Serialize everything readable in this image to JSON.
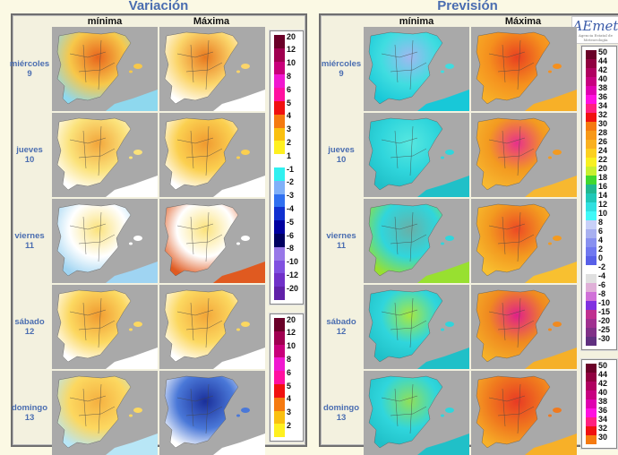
{
  "variacion": {
    "title": "Variación",
    "col_min": "mínima",
    "col_max": "Máxima"
  },
  "prevision": {
    "title": "Previsión",
    "col_min": "mínima",
    "col_max": "Máxima"
  },
  "logo": {
    "text": "AEmet",
    "subtitle": "Agencia Estatal de Meteorología"
  },
  "days": [
    {
      "name": "miércoles",
      "num": "9"
    },
    {
      "name": "jueves",
      "num": "10"
    },
    {
      "name": "viernes",
      "num": "11"
    },
    {
      "name": "sábado",
      "num": "12"
    },
    {
      "name": "domingo",
      "num": "13"
    }
  ],
  "map_colors": {
    "variacion_min": [
      [
        "#f7c84a",
        "#e8641c",
        "#8ed8ee"
      ],
      [
        "#fbe27a",
        "#f2a53a",
        "#ffffff"
      ],
      [
        "#ffffff",
        "#fbe27a",
        "#9fd4f2"
      ],
      [
        "#fcd860",
        "#f09a30",
        "#ffffff"
      ],
      [
        "#fcd860",
        "#f5b040",
        "#b8e6f6"
      ]
    ],
    "variacion_max": [
      [
        "#fbd56a",
        "#e8781e",
        "#ffffff"
      ],
      [
        "#fbd050",
        "#f09a30",
        "#ffffff"
      ],
      [
        "#ffffff",
        "#fbe27a",
        "#e05a20"
      ],
      [
        "#fcd860",
        "#f3a638",
        "#ffffff"
      ],
      [
        "#4a78d8",
        "#1a2f9a",
        "#ffffff"
      ]
    ],
    "prevision_min": [
      [
        "#40dde0",
        "#a0b8f0",
        "#18c8d8"
      ],
      [
        "#30d6dc",
        "#58e8e0",
        "#20c0c8"
      ],
      [
        "#30d6dc",
        "#68b0a8",
        "#98e030"
      ],
      [
        "#30d6dc",
        "#a8e840",
        "#20c0c8"
      ],
      [
        "#30d6dc",
        "#90e058",
        "#20c0c8"
      ]
    ],
    "prevision_max": [
      [
        "#f5901e",
        "#e84020",
        "#f7b028"
      ],
      [
        "#f39a20",
        "#e8308c",
        "#f7b830"
      ],
      [
        "#f39a20",
        "#ec4a24",
        "#f8c030"
      ],
      [
        "#f08a20",
        "#e0208a",
        "#f5b028"
      ],
      [
        "#f07a1e",
        "#e83a24",
        "#f7b028"
      ]
    ]
  },
  "legend_variacion": [
    {
      "label": "20",
      "color": "#6a0028"
    },
    {
      "label": "12",
      "color": "#a00050"
    },
    {
      "label": "10",
      "color": "#c8007a"
    },
    {
      "label": "8",
      "color": "#f018d0"
    },
    {
      "label": "6",
      "color": "#ff10a0"
    },
    {
      "label": "5",
      "color": "#f01010"
    },
    {
      "label": "4",
      "color": "#f57a10"
    },
    {
      "label": "3",
      "color": "#fac010"
    },
    {
      "label": "2",
      "color": "#fff020"
    },
    {
      "label": "1",
      "color": "#ffffff"
    },
    {
      "label": "-1",
      "color": "#30f0f0"
    },
    {
      "label": "-2",
      "color": "#80b0f8"
    },
    {
      "label": "-3",
      "color": "#3070f0"
    },
    {
      "label": "-4",
      "color": "#1030d0"
    },
    {
      "label": "-5",
      "color": "#0000a0"
    },
    {
      "label": "-6",
      "color": "#000060"
    },
    {
      "label": "-8",
      "color": "#9878e8"
    },
    {
      "label": "-10",
      "color": "#8050e0"
    },
    {
      "label": "-12",
      "color": "#7030c8"
    },
    {
      "label": "-20",
      "color": "#6020a8"
    }
  ],
  "legend_prevision": [
    {
      "label": "50",
      "color": "#6a0028"
    },
    {
      "label": "44",
      "color": "#900040"
    },
    {
      "label": "42",
      "color": "#b00060"
    },
    {
      "label": "40",
      "color": "#c80080"
    },
    {
      "label": "38",
      "color": "#e000b0"
    },
    {
      "label": "36",
      "color": "#ff10e0"
    },
    {
      "label": "34",
      "color": "#ff2080"
    },
    {
      "label": "32",
      "color": "#f01010"
    },
    {
      "label": "30",
      "color": "#f57a10"
    },
    {
      "label": "28",
      "color": "#f89818"
    },
    {
      "label": "26",
      "color": "#fab020"
    },
    {
      "label": "24",
      "color": "#fcd020"
    },
    {
      "label": "22",
      "color": "#f8f020"
    },
    {
      "label": "20",
      "color": "#c8f030"
    },
    {
      "label": "18",
      "color": "#40d830"
    },
    {
      "label": "16",
      "color": "#20b890"
    },
    {
      "label": "14",
      "color": "#20c8b8"
    },
    {
      "label": "12",
      "color": "#30e0e0"
    },
    {
      "label": "10",
      "color": "#40f8f8"
    },
    {
      "label": "8",
      "color": "#c8d0f8"
    },
    {
      "label": "6",
      "color": "#a8b0f0"
    },
    {
      "label": "4",
      "color": "#8890f0"
    },
    {
      "label": "2",
      "color": "#7078f0"
    },
    {
      "label": "0",
      "color": "#5860e8"
    },
    {
      "label": "-2",
      "color": "#ffffff"
    },
    {
      "label": "-4",
      "color": "#e0e0e0"
    },
    {
      "label": "-6",
      "color": "#e0b0d8"
    },
    {
      "label": "-8",
      "color": "#d070d8"
    },
    {
      "label": "-10",
      "color": "#8030e0"
    },
    {
      "label": "-15",
      "color": "#c03090"
    },
    {
      "label": "-20",
      "color": "#a03090"
    },
    {
      "label": "-25",
      "color": "#803088"
    },
    {
      "label": "-30",
      "color": "#603080"
    }
  ]
}
